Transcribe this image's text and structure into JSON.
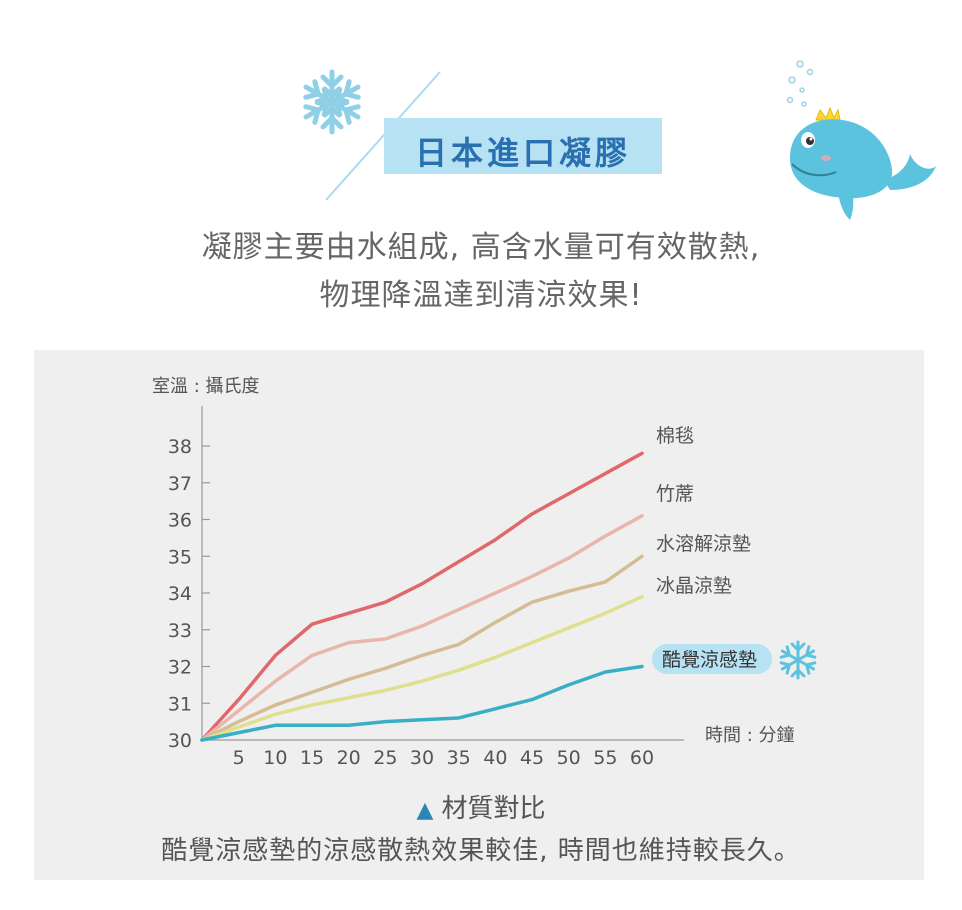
{
  "header": {
    "banner_title": "日本進口凝膠",
    "intro_line1": "凝膠主要由水組成, 高含水量可有效散熱,",
    "intro_line2": "物理降溫達到清涼效果!"
  },
  "icons": {
    "top_snowflake": "snowflake-icon",
    "whale": "whale-mascot",
    "chart_snowflake": "snowflake-icon"
  },
  "colors": {
    "banner_bg": "#b7e2f3",
    "banner_text": "#2a6fb0",
    "highlight_label_bg": "#b7e2f3",
    "triangle": "#2a86b5"
  },
  "chart_data": {
    "type": "line",
    "ylabel": "室溫 : 攝氏度",
    "xlabel": "時間 : 分鐘",
    "x": [
      0,
      5,
      10,
      15,
      20,
      25,
      30,
      35,
      40,
      45,
      50,
      55,
      60
    ],
    "x_ticks": [
      "5",
      "10",
      "15",
      "20",
      "25",
      "30",
      "35",
      "40",
      "45",
      "50",
      "55",
      "60"
    ],
    "y_ticks": [
      "30",
      "31",
      "32",
      "33",
      "34",
      "35",
      "36",
      "37",
      "38"
    ],
    "xlim": [
      0,
      60
    ],
    "ylim": [
      30,
      38
    ],
    "grid": false,
    "legend": "labels at line ends",
    "series": [
      {
        "name": "棉毯",
        "color": "#e0686b",
        "values": [
          30.0,
          31.1,
          32.3,
          33.15,
          33.45,
          33.75,
          34.25,
          34.85,
          35.45,
          36.15,
          36.7,
          37.25,
          37.8
        ]
      },
      {
        "name": "竹蓆",
        "color": "#e8b6aa",
        "values": [
          30.0,
          30.8,
          31.6,
          32.3,
          32.65,
          32.75,
          33.1,
          33.55,
          34.0,
          34.45,
          34.95,
          35.55,
          36.1
        ]
      },
      {
        "name": "水溶解涼墊",
        "color": "#d4bd92",
        "values": [
          30.0,
          30.5,
          30.95,
          31.3,
          31.65,
          31.95,
          32.3,
          32.6,
          33.2,
          33.75,
          34.05,
          34.3,
          35.0
        ]
      },
      {
        "name": "冰晶涼墊",
        "color": "#dfe08e",
        "values": [
          30.0,
          30.35,
          30.7,
          30.95,
          31.15,
          31.35,
          31.6,
          31.9,
          32.25,
          32.65,
          33.05,
          33.45,
          33.9
        ]
      },
      {
        "name": "酷覺涼感墊",
        "color": "#3aaec4",
        "highlight": true,
        "values": [
          30.0,
          30.2,
          30.4,
          30.4,
          30.4,
          30.5,
          30.55,
          30.6,
          30.85,
          31.1,
          31.5,
          31.85,
          32.0
        ]
      }
    ]
  },
  "caption": {
    "triangle": "▲",
    "title": "材質對比",
    "body": "酷覺涼感墊的涼感散熱效果較佳, 時間也維持較長久。"
  }
}
